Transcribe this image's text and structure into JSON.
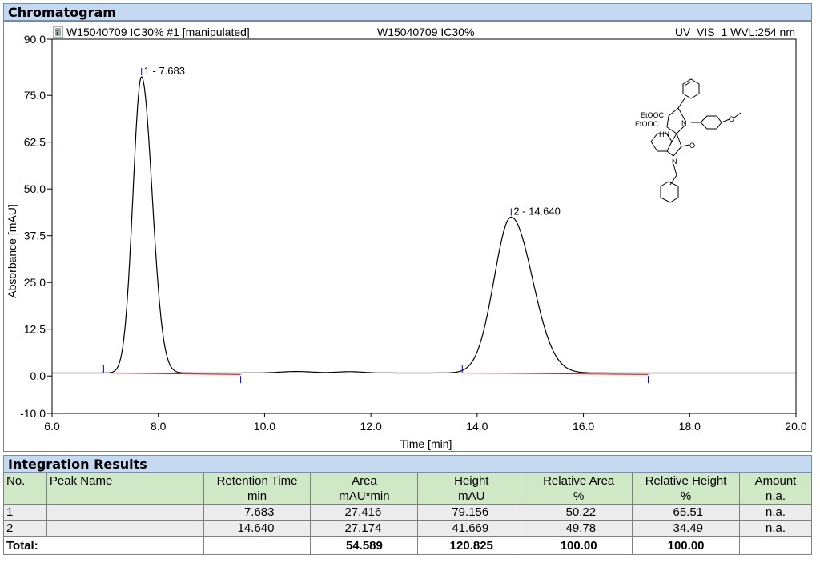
{
  "chromatogram_title": "Chromatogram",
  "header_left": "W15040709 IC30% #1 [manipulated]",
  "header_center": "W15040709 IC30%",
  "header_right": "UV_VIS_1 WVL:254 nm",
  "structure_labels": [
    "EtOOC",
    "EtOOC",
    "N",
    "HN",
    "O",
    "N",
    "O"
  ],
  "chart_data": {
    "type": "line",
    "xlabel": "Time [min]",
    "ylabel": "Absorbance [mAU]",
    "xlim": [
      6.0,
      20.0
    ],
    "ylim": [
      -10.0,
      90.0
    ],
    "xticks": [
      "6.0",
      "8.0",
      "10.0",
      "12.0",
      "14.0",
      "16.0",
      "18.0",
      "20.0"
    ],
    "yticks": [
      "-10.0",
      "0.0",
      "12.5",
      "25.0",
      "37.5",
      "50.0",
      "62.5",
      "75.0",
      "90.0"
    ],
    "ytick_values": [
      -10.0,
      0.0,
      12.5,
      25.0,
      37.5,
      50.0,
      62.5,
      75.0,
      90.0
    ],
    "xtick_values": [
      6,
      8,
      10,
      12,
      14,
      16,
      18,
      20
    ],
    "peaks": [
      {
        "label": "1 - 7.683",
        "time": 7.683,
        "height": 79.156,
        "start": 6.97,
        "end": 9.55
      },
      {
        "label": "2 - 14.640",
        "time": 14.64,
        "height": 41.669,
        "start": 13.72,
        "end": 17.22
      }
    ],
    "baseline_offset": 0.8,
    "colors": {
      "trace": "#000000",
      "baseline": "#ff0000",
      "marker": "#0000ff"
    }
  },
  "integration": {
    "title": "Integration Results",
    "headers": [
      [
        "No.",
        ""
      ],
      [
        "Peak Name",
        ""
      ],
      [
        "Retention Time",
        "min"
      ],
      [
        "Area",
        "mAU*min"
      ],
      [
        "Height",
        "mAU"
      ],
      [
        "Relative Area",
        "%"
      ],
      [
        "Relative Height",
        "%"
      ],
      [
        "Amount",
        "n.a."
      ]
    ],
    "rows": [
      [
        "1",
        "",
        "7.683",
        "27.416",
        "79.156",
        "50.22",
        "65.51",
        "n.a."
      ],
      [
        "2",
        "",
        "14.640",
        "27.174",
        "41.669",
        "49.78",
        "34.49",
        "n.a."
      ]
    ],
    "total": [
      "Total:",
      "",
      "",
      "54.589",
      "120.825",
      "100.00",
      "100.00",
      ""
    ]
  }
}
